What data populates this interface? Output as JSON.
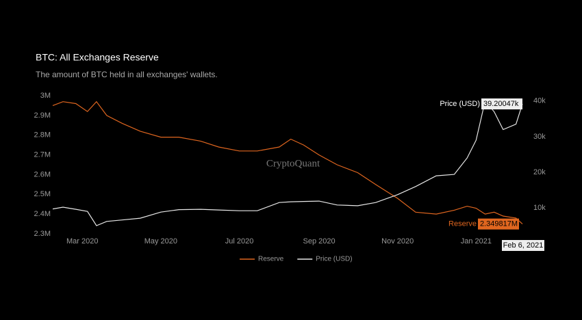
{
  "chart_data": {
    "type": "line",
    "title": "BTC: All Exchanges Reserve",
    "subtitle": "The amount of BTC held in all exchanges' wallets.",
    "watermark": "CryptoQuant",
    "hover_x_label": "Feb 6, 2021",
    "x": [
      "2020-02-07",
      "2020-02-15",
      "2020-02-25",
      "2020-03-05",
      "2020-03-12",
      "2020-03-20",
      "2020-04-01",
      "2020-04-15",
      "2020-05-01",
      "2020-05-15",
      "2020-06-01",
      "2020-06-15",
      "2020-07-01",
      "2020-07-15",
      "2020-08-01",
      "2020-08-10",
      "2020-08-20",
      "2020-09-01",
      "2020-09-15",
      "2020-10-01",
      "2020-10-15",
      "2020-11-01",
      "2020-11-15",
      "2020-12-01",
      "2020-12-15",
      "2020-12-25",
      "2021-01-01",
      "2021-01-08",
      "2021-01-15",
      "2021-01-22",
      "2021-02-01",
      "2021-02-06"
    ],
    "xlim": [
      "2020-02-07",
      "2021-02-06"
    ],
    "xticks": [
      {
        "value": "2020-03-01",
        "label": "Mar 2020"
      },
      {
        "value": "2020-05-01",
        "label": "May 2020"
      },
      {
        "value": "2020-07-01",
        "label": "Jul 2020"
      },
      {
        "value": "2020-09-01",
        "label": "Sep 2020"
      },
      {
        "value": "2020-11-01",
        "label": "Nov 2020"
      },
      {
        "value": "2021-01-01",
        "label": "Jan 2021"
      }
    ],
    "ylim": [
      2300000,
      3000000
    ],
    "yticks": [
      {
        "value": 2300000,
        "label": "2.3M"
      },
      {
        "value": 2400000,
        "label": "2.4M"
      },
      {
        "value": 2500000,
        "label": "2.5M"
      },
      {
        "value": 2600000,
        "label": "2.6M"
      },
      {
        "value": 2700000,
        "label": "2.7M"
      },
      {
        "value": 2800000,
        "label": "2.8M"
      },
      {
        "value": 2900000,
        "label": "2.9M"
      },
      {
        "value": 3000000,
        "label": "3M"
      }
    ],
    "y2lim": [
      2700,
      41500
    ],
    "y2ticks": [
      {
        "value": 10000,
        "label": "10k"
      },
      {
        "value": 20000,
        "label": "20k"
      },
      {
        "value": 30000,
        "label": "30k"
      },
      {
        "value": 40000,
        "label": "40k"
      }
    ],
    "grid": false,
    "legend": "bottom",
    "series": [
      {
        "name": "Reserve",
        "color": "#e0661f",
        "values": [
          2950000,
          2970000,
          2960000,
          2920000,
          2970000,
          2900000,
          2860000,
          2820000,
          2790000,
          2790000,
          2770000,
          2740000,
          2720000,
          2720000,
          2740000,
          2780000,
          2750000,
          2700000,
          2650000,
          2610000,
          2550000,
          2480000,
          2410000,
          2400000,
          2420000,
          2440000,
          2430000,
          2400000,
          2410000,
          2390000,
          2380000,
          2349817
        ],
        "value_labels": [
          null,
          null,
          null,
          null,
          null,
          null,
          null,
          null,
          null,
          null,
          null,
          null,
          null,
          null,
          null,
          null,
          null,
          null,
          null,
          null,
          null,
          null,
          null,
          null,
          null,
          null,
          null,
          null,
          null,
          null,
          null,
          "2.349817M"
        ]
      },
      {
        "name": "Price (USD)",
        "color": "#e8e8e8",
        "axis": "y2",
        "values": [
          9700,
          10200,
          9600,
          9000,
          5000,
          6200,
          6600,
          7100,
          8800,
          9500,
          9600,
          9400,
          9200,
          9200,
          11500,
          11700,
          11800,
          11900,
          10800,
          10600,
          11500,
          13700,
          16000,
          19000,
          19400,
          24000,
          29000,
          40000,
          37000,
          32000,
          33500,
          39200.47
        ],
        "value_labels": [
          null,
          null,
          null,
          null,
          null,
          null,
          null,
          null,
          null,
          null,
          null,
          null,
          null,
          null,
          null,
          null,
          null,
          null,
          null,
          null,
          null,
          null,
          null,
          null,
          null,
          null,
          null,
          null,
          null,
          null,
          null,
          "39.20047k"
        ]
      }
    ]
  }
}
